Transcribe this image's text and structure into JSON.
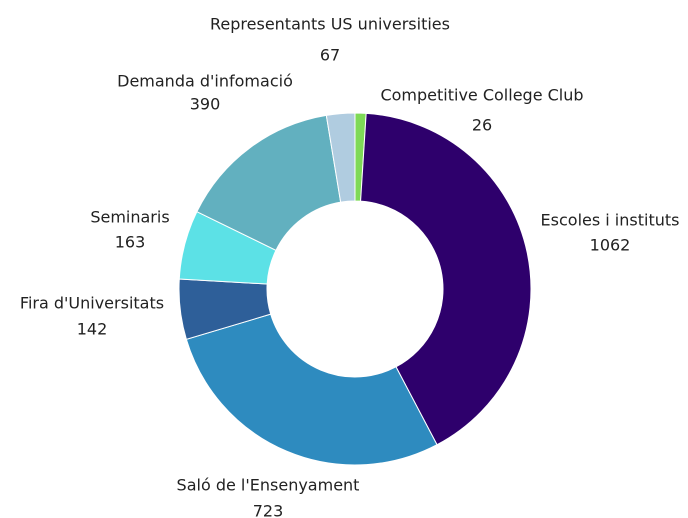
{
  "chart_data": {
    "type": "donut",
    "categories": [
      "Competitive College Club",
      "Escoles i instituts",
      "Saló de l'Ensenyament",
      "Fira d'Universitats",
      "Seminaris",
      "Demanda d'infomació",
      "Representants US universities"
    ],
    "values": [
      26,
      1062,
      723,
      142,
      163,
      390,
      67
    ],
    "colors": [
      "#7ed957",
      "#2e006c",
      "#2e8bbf",
      "#2e5f99",
      "#5ce1e6",
      "#62b0bf",
      "#b0cce0"
    ]
  }
}
